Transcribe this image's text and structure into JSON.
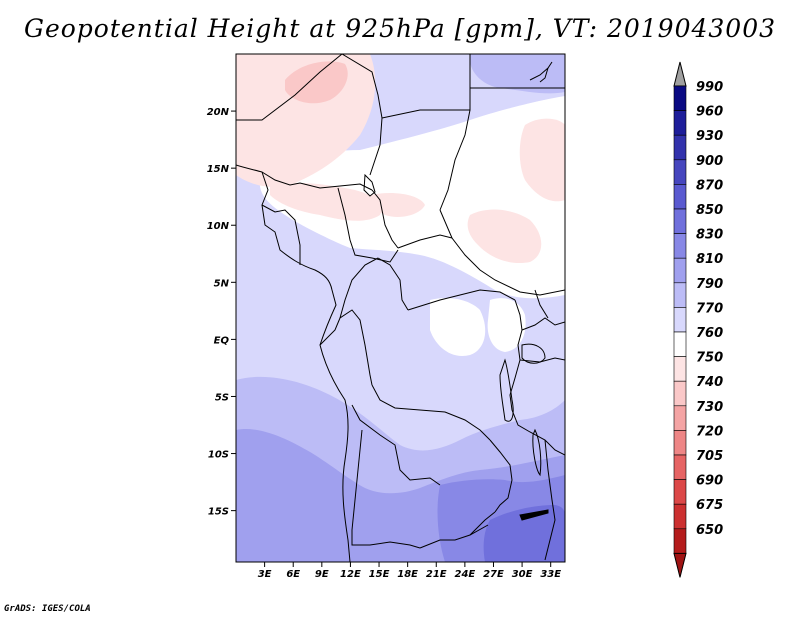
{
  "chart_data": {
    "type": "heatmap",
    "title": "Geopotential Height at 925hPa [gpm], VT: 2019043003",
    "variable": "Geopotential Height",
    "level": "925hPa",
    "units": "gpm",
    "valid_time": "2019043003",
    "x_ticks": [
      "3E",
      "6E",
      "9E",
      "12E",
      "15E",
      "18E",
      "21E",
      "24E",
      "27E",
      "30E",
      "33E"
    ],
    "y_ticks": [
      "20N",
      "15N",
      "10N",
      "5N",
      "EQ",
      "5S",
      "10S",
      "15S"
    ],
    "xlim": [
      0,
      34.5
    ],
    "ylim": [
      -19.5,
      25
    ],
    "x_values": [
      3,
      6,
      9,
      12,
      15,
      18,
      21,
      24,
      27,
      30,
      33
    ],
    "y_values": [
      20,
      15,
      10,
      5,
      0,
      -5,
      -10,
      -15
    ],
    "colorbar_levels": [
      "990",
      "960",
      "930",
      "900",
      "870",
      "850",
      "830",
      "810",
      "790",
      "770",
      "760",
      "750",
      "740",
      "730",
      "720",
      "705",
      "690",
      "675",
      "650"
    ],
    "colorbar_colors": [
      "#0a0a82",
      "#1e1e9a",
      "#3232ac",
      "#4646be",
      "#5a5ad0",
      "#7070dc",
      "#8888e6",
      "#a0a0ee",
      "#bcbcf6",
      "#d8d8fc",
      "#ffffff",
      "#fde4e4",
      "#fac8c8",
      "#f4a4a4",
      "#ee8686",
      "#e66464",
      "#dc4848",
      "#cc3030",
      "#b41c1c",
      "#a01414"
    ],
    "colorbar_over_color": "#a0a0a0"
  },
  "footer": {
    "credit": "GrADS: IGES/COLA"
  }
}
